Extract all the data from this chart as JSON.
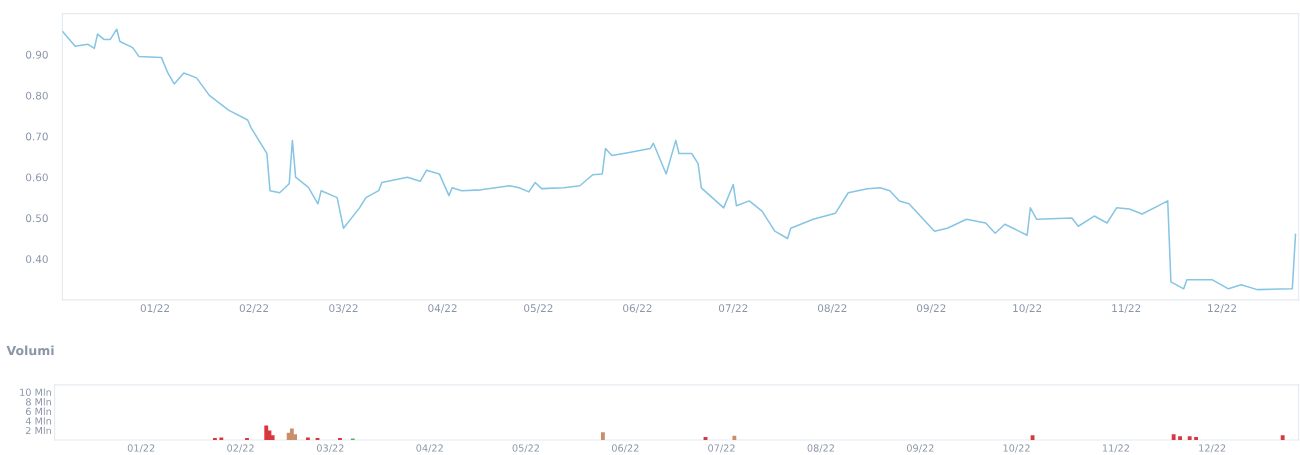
{
  "chart_data": [
    {
      "type": "line",
      "color": "#86c5e3",
      "x": [
        "2021-12-03",
        "2021-12-07",
        "2021-12-11",
        "2021-12-13",
        "2021-12-14",
        "2021-12-16",
        "2021-12-18",
        "2021-12-20",
        "2021-12-21",
        "2021-12-25",
        "2021-12-27",
        "2022-01-03",
        "2022-01-05",
        "2022-01-07",
        "2022-01-10",
        "2022-01-14",
        "2022-01-18",
        "2022-01-24",
        "2022-01-30",
        "2022-01-31",
        "2022-02-05",
        "2022-02-06",
        "2022-02-09",
        "2022-02-12",
        "2022-02-13",
        "2022-02-14",
        "2022-02-18",
        "2022-02-21",
        "2022-02-22",
        "2022-02-27",
        "2022-03-01",
        "2022-03-06",
        "2022-03-08",
        "2022-03-12",
        "2022-03-13",
        "2022-03-21",
        "2022-03-25",
        "2022-03-27",
        "2022-03-31",
        "2022-04-03",
        "2022-04-04",
        "2022-04-07",
        "2022-04-13",
        "2022-04-22",
        "2022-04-25",
        "2022-04-28",
        "2022-04-30",
        "2022-05-02",
        "2022-05-09",
        "2022-05-14",
        "2022-05-18",
        "2022-05-21",
        "2022-05-22",
        "2022-05-24",
        "2022-05-29",
        "2022-06-05",
        "2022-06-06",
        "2022-06-10",
        "2022-06-13",
        "2022-06-14",
        "2022-06-18",
        "2022-06-20",
        "2022-06-21",
        "2022-06-28",
        "2022-07-01",
        "2022-07-02",
        "2022-07-06",
        "2022-07-10",
        "2022-07-14",
        "2022-07-18",
        "2022-07-19",
        "2022-07-26",
        "2022-08-02",
        "2022-08-06",
        "2022-08-09",
        "2022-08-12",
        "2022-08-16",
        "2022-08-19",
        "2022-08-22",
        "2022-08-25",
        "2022-09-02",
        "2022-09-06",
        "2022-09-12",
        "2022-09-18",
        "2022-09-21",
        "2022-09-24",
        "2022-10-01",
        "2022-10-02",
        "2022-10-04",
        "2022-10-15",
        "2022-10-17",
        "2022-10-22",
        "2022-10-26",
        "2022-10-29",
        "2022-11-02",
        "2022-11-06",
        "2022-11-11",
        "2022-11-14",
        "2022-11-15",
        "2022-11-19",
        "2022-11-20",
        "2022-11-28",
        "2022-12-03",
        "2022-12-07",
        "2022-12-12",
        "2022-12-23",
        "2022-12-24"
      ],
      "values": [
        0.957,
        0.92,
        0.925,
        0.915,
        0.95,
        0.937,
        0.937,
        0.962,
        0.932,
        0.917,
        0.895,
        0.893,
        0.855,
        0.828,
        0.855,
        0.843,
        0.8,
        0.764,
        0.74,
        0.722,
        0.658,
        0.567,
        0.562,
        0.584,
        0.69,
        0.6,
        0.575,
        0.535,
        0.567,
        0.55,
        0.475,
        0.525,
        0.55,
        0.567,
        0.587,
        0.6,
        0.59,
        0.617,
        0.608,
        0.555,
        0.574,
        0.567,
        0.569,
        0.579,
        0.574,
        0.564,
        0.587,
        0.572,
        0.574,
        0.579,
        0.606,
        0.608,
        0.67,
        0.653,
        0.66,
        0.67,
        0.683,
        0.608,
        0.69,
        0.658,
        0.658,
        0.633,
        0.574,
        0.525,
        0.582,
        0.53,
        0.542,
        0.517,
        0.468,
        0.45,
        0.475,
        0.497,
        0.512,
        0.562,
        0.567,
        0.572,
        0.574,
        0.567,
        0.542,
        0.535,
        0.468,
        0.475,
        0.497,
        0.488,
        0.463,
        0.485,
        0.458,
        0.525,
        0.497,
        0.5,
        0.48,
        0.505,
        0.488,
        0.525,
        0.522,
        0.51,
        0.53,
        0.542,
        0.344,
        0.327,
        0.349,
        0.349,
        0.327,
        0.337,
        0.325,
        0.327,
        0.46
      ],
      "xlim": [
        "2021-12-03",
        "2022-12-25"
      ],
      "ylim": [
        0.3,
        1.0
      ],
      "xticks": [
        {
          "value": "2022-01-01",
          "label": "01/22"
        },
        {
          "value": "2022-02-01",
          "label": "02/22"
        },
        {
          "value": "2022-03-01",
          "label": "03/22"
        },
        {
          "value": "2022-04-01",
          "label": "04/22"
        },
        {
          "value": "2022-05-01",
          "label": "05/22"
        },
        {
          "value": "2022-06-01",
          "label": "06/22"
        },
        {
          "value": "2022-07-01",
          "label": "07/22"
        },
        {
          "value": "2022-08-01",
          "label": "08/22"
        },
        {
          "value": "2022-09-01",
          "label": "09/22"
        },
        {
          "value": "2022-10-01",
          "label": "10/22"
        },
        {
          "value": "2022-11-01",
          "label": "11/22"
        },
        {
          "value": "2022-12-01",
          "label": "12/22"
        }
      ],
      "yticks": [
        {
          "value": 0.4,
          "label": "0.40"
        },
        {
          "value": 0.5,
          "label": "0.50"
        },
        {
          "value": 0.6,
          "label": "0.60"
        },
        {
          "value": 0.7,
          "label": "0.70"
        },
        {
          "value": 0.8,
          "label": "0.80"
        },
        {
          "value": 0.9,
          "label": "0.90"
        }
      ]
    },
    {
      "type": "bar",
      "title": "Volumi",
      "x": [
        "2022-01-24",
        "2022-01-26",
        "2022-02-03",
        "2022-02-09",
        "2022-02-10",
        "2022-02-11",
        "2022-02-16",
        "2022-02-17",
        "2022-02-18",
        "2022-02-22",
        "2022-02-25",
        "2022-03-04",
        "2022-03-08",
        "2022-05-25",
        "2022-06-26",
        "2022-07-05",
        "2022-10-06",
        "2022-11-19",
        "2022-11-21",
        "2022-11-24",
        "2022-11-26",
        "2022-12-23"
      ],
      "values": [
        0.4,
        0.5,
        0.4,
        3.0,
        2.0,
        1.0,
        1.5,
        2.4,
        1.2,
        0.5,
        0.4,
        0.4,
        0.3,
        1.6,
        0.6,
        0.9,
        1.0,
        1.2,
        0.8,
        0.8,
        0.6,
        1.0
      ],
      "colors": [
        "#d9363e",
        "#d9363e",
        "#d9363e",
        "#d9363e",
        "#d9363e",
        "#d9363e",
        "#c98f6b",
        "#c98f6b",
        "#c98f6b",
        "#d9363e",
        "#d9363e",
        "#d9363e",
        "#6aa86a",
        "#c98f6b",
        "#d9363e",
        "#c98f6b",
        "#d9363e",
        "#d9363e",
        "#d9363e",
        "#d9363e",
        "#d9363e",
        "#d9363e"
      ],
      "xlim": [
        "2021-12-05",
        "2022-12-28"
      ],
      "ylim": [
        0,
        11.5
      ],
      "xticks": [
        {
          "value": "2022-01-01",
          "label": "01/22"
        },
        {
          "value": "2022-02-01",
          "label": "02/22"
        },
        {
          "value": "2022-03-01",
          "label": "03/22"
        },
        {
          "value": "2022-04-01",
          "label": "04/22"
        },
        {
          "value": "2022-05-01",
          "label": "05/22"
        },
        {
          "value": "2022-06-01",
          "label": "06/22"
        },
        {
          "value": "2022-07-01",
          "label": "07/22"
        },
        {
          "value": "2022-08-01",
          "label": "08/22"
        },
        {
          "value": "2022-09-01",
          "label": "09/22"
        },
        {
          "value": "2022-10-01",
          "label": "10/22"
        },
        {
          "value": "2022-11-01",
          "label": "11/22"
        },
        {
          "value": "2022-12-01",
          "label": "12/22"
        }
      ],
      "yticks": [
        {
          "value": 2,
          "label": "2 Mln"
        },
        {
          "value": 4,
          "label": "4 Mln"
        },
        {
          "value": 6,
          "label": "6 Mln"
        },
        {
          "value": 8,
          "label": "8 Mln"
        },
        {
          "value": 10,
          "label": "10 Mln"
        }
      ]
    }
  ]
}
